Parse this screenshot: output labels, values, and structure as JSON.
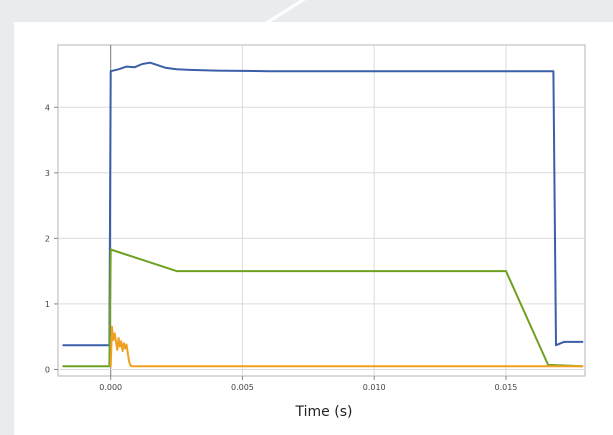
{
  "chart_data": {
    "type": "line",
    "title": "",
    "xlabel": "Time (s)",
    "ylabel": "",
    "xlim": [
      -0.002,
      0.018
    ],
    "ylim": [
      -0.1,
      4.95
    ],
    "x_ticks": [
      0.0,
      0.005,
      0.01,
      0.015
    ],
    "x_tick_labels": [
      "0.000",
      "0.005",
      "0.010",
      "0.015"
    ],
    "y_ticks": [
      0,
      1,
      2,
      3,
      4
    ],
    "y_tick_labels": [
      "0",
      "1",
      "2",
      "3",
      "4"
    ],
    "grid": true,
    "legend": "none",
    "series": [
      {
        "color": "#3a5ea8",
        "x": [
          -0.0018,
          -0.001,
          -0.0003,
          -5e-05,
          0.0,
          0.0003,
          0.0006,
          0.0009,
          0.0012,
          0.0015,
          0.0018,
          0.0021,
          0.0025,
          0.003,
          0.004,
          0.006,
          0.008,
          0.01,
          0.012,
          0.014,
          0.0155,
          0.0168,
          0.0169,
          0.0172,
          0.0176,
          0.0179
        ],
        "y": [
          0.37,
          0.37,
          0.37,
          0.37,
          4.55,
          4.58,
          4.62,
          4.61,
          4.66,
          4.68,
          4.64,
          4.6,
          4.58,
          4.57,
          4.56,
          4.55,
          4.55,
          4.55,
          4.55,
          4.55,
          4.55,
          4.55,
          0.37,
          0.42,
          0.42,
          0.42
        ]
      },
      {
        "color": "#6fa020",
        "x": [
          -0.0018,
          -5e-05,
          0.0,
          0.0025,
          0.005,
          0.01,
          0.015,
          0.0166,
          0.0179
        ],
        "y": [
          0.05,
          0.05,
          1.83,
          1.5,
          1.5,
          1.5,
          1.5,
          0.07,
          0.05
        ]
      },
      {
        "color": "#f0a020",
        "x": [
          0.0,
          5e-05,
          0.0001,
          0.00015,
          0.0002,
          0.00025,
          0.0003,
          0.00035,
          0.0004,
          0.00045,
          0.0005,
          0.00055,
          0.0006,
          0.00065,
          0.0007,
          0.00075,
          0.0008,
          0.0009,
          0.0011,
          0.002,
          0.005,
          0.01,
          0.015,
          0.0179
        ],
        "y": [
          0.05,
          0.65,
          0.45,
          0.55,
          0.42,
          0.3,
          0.48,
          0.35,
          0.43,
          0.28,
          0.4,
          0.32,
          0.38,
          0.25,
          0.12,
          0.06,
          0.05,
          0.05,
          0.05,
          0.05,
          0.05,
          0.05,
          0.05,
          0.05
        ]
      }
    ]
  }
}
